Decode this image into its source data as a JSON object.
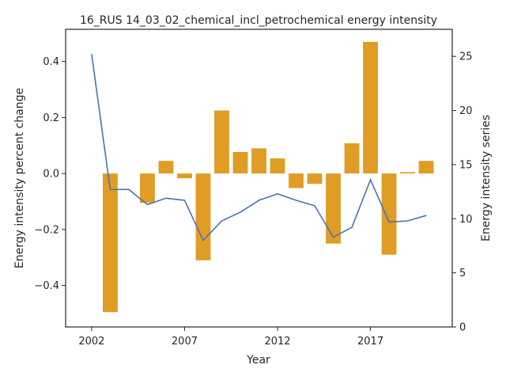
{
  "chart_data": {
    "type": "bar+line",
    "title": "16_RUS 14_03_02_chemical_incl_petrochemical energy intensity",
    "xlabel": "Year",
    "ylabel_left": "Energy intensity percent change",
    "ylabel_right": "Energy intensity series",
    "x": [
      2002,
      2003,
      2004,
      2005,
      2006,
      2007,
      2008,
      2009,
      2010,
      2011,
      2012,
      2013,
      2014,
      2015,
      2016,
      2017,
      2018,
      2019,
      2020
    ],
    "xticks": [
      "2002",
      "2007",
      "2012",
      "2017"
    ],
    "xlim": [
      2000.6,
      2021.4
    ],
    "bar_series": {
      "name": "Energy intensity percent change",
      "color": "#e09c24",
      "values": [
        null,
        -0.495,
        null,
        -0.105,
        0.045,
        -0.017,
        -0.31,
        0.225,
        0.077,
        0.09,
        0.054,
        -0.052,
        -0.037,
        -0.25,
        0.108,
        0.47,
        -0.29,
        0.005,
        0.045
      ]
    },
    "line_series": {
      "name": "Energy intensity series",
      "color": "#4c72b0",
      "values": [
        25.2,
        12.7,
        12.7,
        11.3,
        11.9,
        11.7,
        8.0,
        9.8,
        10.6,
        11.7,
        12.3,
        11.7,
        11.2,
        8.3,
        9.2,
        13.6,
        9.7,
        9.8,
        10.3
      ]
    },
    "ylim_left": [
      -0.548,
      0.515
    ],
    "yticks_left": [
      -0.4,
      -0.2,
      0.0,
      0.2,
      0.4
    ],
    "yticks_left_labels": [
      "−0.4",
      "−0.2",
      "0.0",
      "0.2",
      "0.4"
    ],
    "ylim_right": [
      0,
      27.5
    ],
    "yticks_right": [
      0,
      5,
      10,
      15,
      20,
      25
    ],
    "yticks_right_labels": [
      "0",
      "5",
      "10",
      "15",
      "20",
      "25"
    ],
    "grid": false,
    "legend": "none"
  }
}
